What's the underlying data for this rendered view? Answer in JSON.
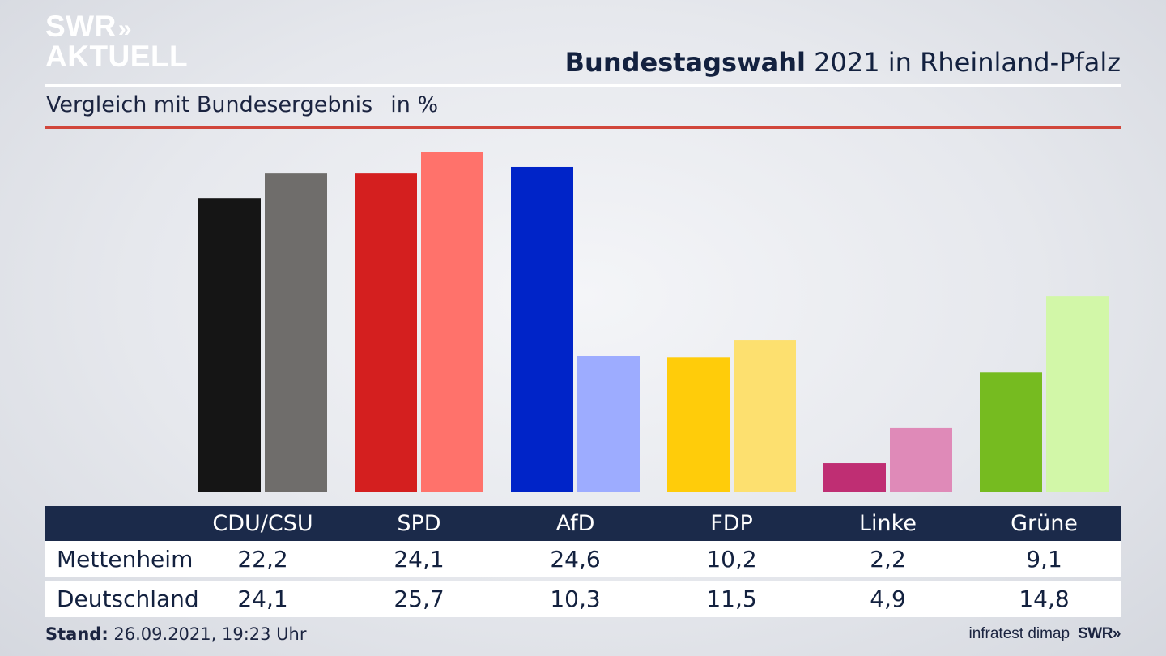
{
  "header": {
    "logo_line1": "SWR",
    "logo_arrows": "»",
    "logo_line2": "AKTUELL",
    "title_bold": "Bundestagswahl",
    "title_rest": " 2021 in Rheinland-Pfalz",
    "subtitle": "Vergleich mit Bundesergebnis",
    "unit": "in %"
  },
  "chart_data": {
    "type": "bar",
    "title": "Bundestagswahl 2021 in Rheinland-Pfalz",
    "subtitle": "Vergleich mit Bundesergebnis in %",
    "categories": [
      "CDU/CSU",
      "SPD",
      "AfD",
      "FDP",
      "Linke",
      "Grüne"
    ],
    "series": [
      {
        "name": "Mettenheim",
        "values": [
          22.2,
          24.1,
          24.6,
          10.2,
          2.2,
          9.1
        ]
      },
      {
        "name": "Deutschland",
        "values": [
          24.1,
          25.7,
          10.3,
          11.5,
          4.9,
          14.8
        ]
      }
    ],
    "colors": {
      "Mettenheim": [
        "#151515",
        "#d41f1f",
        "#0024c8",
        "#ffcc0a",
        "#bf2e73",
        "#76bb20"
      ],
      "Deutschland": [
        "#6f6d6b",
        "#ff726b",
        "#9dacff",
        "#fde06f",
        "#df8ab8",
        "#d2f7a8"
      ]
    },
    "ylim": [
      0,
      25.7
    ],
    "grid": false,
    "legend": "table-below"
  },
  "table": {
    "rows": [
      {
        "label": "Mettenheim",
        "values": [
          "22,2",
          "24,1",
          "24,6",
          "10,2",
          "2,2",
          "9,1"
        ]
      },
      {
        "label": "Deutschland",
        "values": [
          "24,1",
          "25,7",
          "10,3",
          "11,5",
          "4,9",
          "14,8"
        ]
      }
    ]
  },
  "footer": {
    "stand_label": "Stand:",
    "stand_value": " 26.09.2021, 19:23 Uhr",
    "source": "infratest dimap",
    "brand": "SWR»"
  }
}
